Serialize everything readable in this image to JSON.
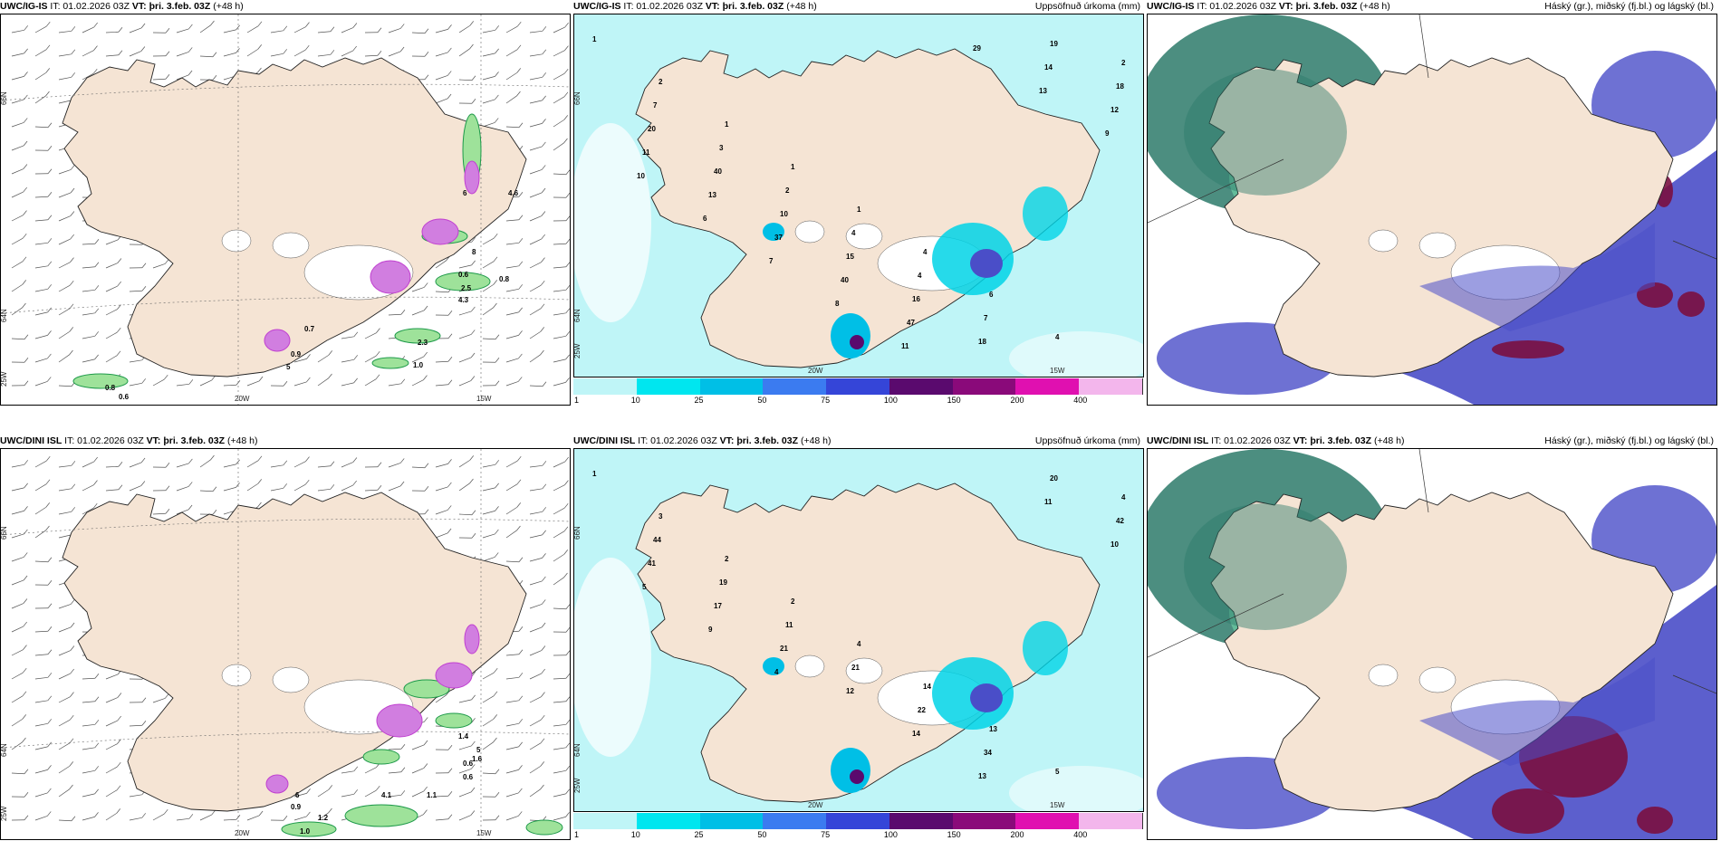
{
  "panels": [
    {
      "id": "p1",
      "model": "UWC/IG-IS",
      "it": "IT: 01.02.2026 03Z",
      "vt_label": "VT:",
      "vt": "þri. 3.feb. 03Z",
      "lead": "(+48 h)",
      "right": "",
      "type": "wind"
    },
    {
      "id": "p2",
      "model": "UWC/IG-IS",
      "it": "IT: 01.02.2026 03Z",
      "vt_label": "VT:",
      "vt": "þri. 3.feb. 03Z",
      "lead": "(+48 h)",
      "right": "Uppsöfnuð úrkoma (mm)",
      "type": "precip"
    },
    {
      "id": "p3",
      "model": "UWC/IG-IS",
      "it": "IT: 01.02.2026 03Z",
      "vt_label": "VT:",
      "vt": "þri. 3.feb. 03Z",
      "lead": "(+48 h)",
      "right": "Háský (gr.), miðský (fj.bl.) og lágský (bl.)",
      "type": "cloud"
    },
    {
      "id": "p4",
      "model": "UWC/DINI ISL",
      "it": "IT: 01.02.2026 03Z",
      "vt_label": "VT:",
      "vt": "þri. 3.feb. 03Z",
      "lead": "(+48 h)",
      "right": "",
      "type": "wind"
    },
    {
      "id": "p5",
      "model": "UWC/DINI ISL",
      "it": "IT: 01.02.2026 03Z",
      "vt_label": "VT:",
      "vt": "þri. 3.feb. 03Z",
      "lead": "(+48 h)",
      "right": "Uppsöfnuð úrkoma (mm)",
      "type": "precip"
    },
    {
      "id": "p6",
      "model": "UWC/DINI ISL",
      "it": "IT: 01.02.2026 03Z",
      "vt_label": "VT:",
      "vt": "þri. 3.feb. 03Z",
      "lead": "(+48 h)",
      "right": "Háský (gr.), miðský (fj.bl.) og lágský (bl.)",
      "type": "cloud"
    }
  ],
  "axis_labels": {
    "lat66": "66N",
    "lat64": "64N",
    "lon25": "25W",
    "lon20": "20W",
    "lon15": "15W"
  },
  "colorbar": {
    "ticks": [
      "1",
      "10",
      "25",
      "50",
      "75",
      "100",
      "150",
      "200",
      "400"
    ],
    "colors": [
      "#bff5f7",
      "#00e6ef",
      "#00bfe6",
      "#3b7bf0",
      "#3545d8",
      "#5a0a6e",
      "#8a0a7a",
      "#e010b0",
      "#f3b6ec"
    ]
  },
  "wind_labels": {
    "p1": [
      "0.7",
      "0.9",
      "5",
      "0.6",
      "2.5",
      "4.3",
      "0.8",
      "2.3",
      "1.0",
      "0.8",
      "0.6",
      "6",
      "4.6",
      "8"
    ],
    "p4": [
      "0.9",
      "1.1",
      "4.1",
      "0.6",
      "1.6",
      "1.4",
      "0.6",
      "1.2",
      "1.0",
      "6",
      "5"
    ]
  },
  "precip_labels": {
    "p2": [
      "1",
      "2",
      "1",
      "1",
      "1",
      "4",
      "6",
      "4",
      "2",
      "7",
      "3",
      "2",
      "4",
      "4",
      "7",
      "19",
      "18",
      "20",
      "40",
      "10",
      "15",
      "16",
      "18",
      "14",
      "12",
      "11",
      "13",
      "37",
      "40",
      "47",
      "29",
      "13",
      "9",
      "10",
      "6",
      "7",
      "8",
      "11"
    ],
    "p5": [
      "1",
      "3",
      "2",
      "2",
      "4",
      "14",
      "13",
      "5",
      "4",
      "44",
      "19",
      "11",
      "21",
      "22",
      "34",
      "20",
      "42",
      "41",
      "17",
      "21",
      "12",
      "14",
      "13",
      "11",
      "10",
      "5",
      "9",
      "4"
    ]
  },
  "colors": {
    "land": "#f5e4d4",
    "coast": "#222222",
    "precip_light": "#bff5f7",
    "precip_mid": "#00d4e6",
    "cloud_high": "#2d7a6a",
    "cloud_mid": "#4a4ec8",
    "cloud_low": "#7a1040",
    "snow_green": "#1e9a4a",
    "snow_pink": "#c040d0"
  }
}
